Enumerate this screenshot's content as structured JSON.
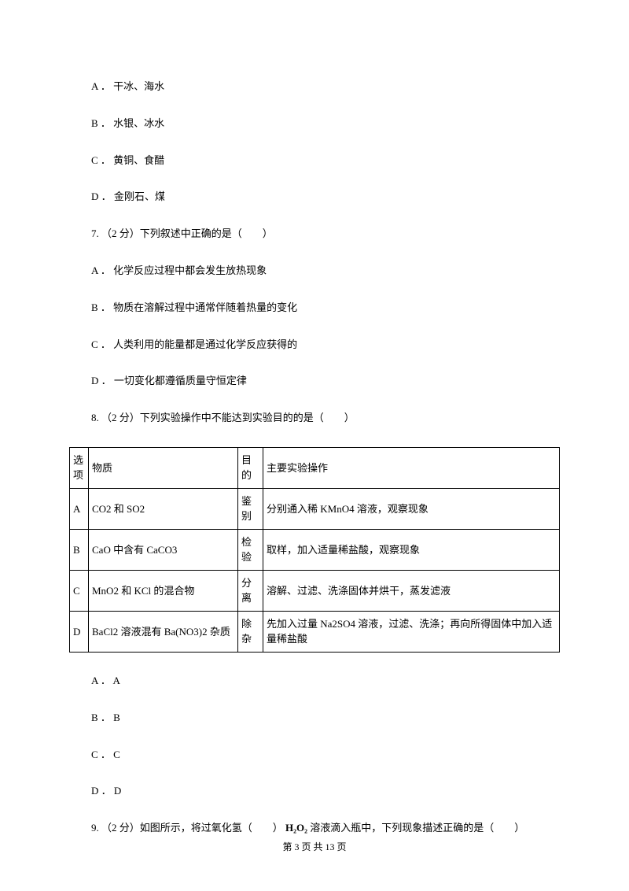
{
  "q6": {
    "a": "A ． 干冰、海水",
    "b": "B ． 水银、冰水",
    "c": "C ． 黄铜、食醋",
    "d": "D ． 金刚石、煤"
  },
  "q7": {
    "stem": "7. （2 分）下列叙述中正确的是（　　）",
    "a": "A ． 化学反应过程中都会发生放热现象",
    "b": "B ． 物质在溶解过程中通常伴随着热量的变化",
    "c": "C ． 人类利用的能量都是通过化学反应获得的",
    "d": "D ． 一切变化都遵循质量守恒定律"
  },
  "q8": {
    "stem": "8. （2 分）下列实验操作中不能达到实验目的的是（　　）",
    "headers": {
      "opt": "选项",
      "sub": "物质",
      "pur": "目的",
      "ops": "主要实验操作"
    },
    "rows": [
      {
        "opt": "A",
        "sub": "CO2 和 SO2",
        "pur": "鉴别",
        "ops": "分别通入稀 KMnO4 溶液，观察现象"
      },
      {
        "opt": "B",
        "sub": "CaO 中含有 CaCO3",
        "pur": "检验",
        "ops": "取样，加入适量稀盐酸，观察现象"
      },
      {
        "opt": "C",
        "sub": "MnO2 和 KCl 的混合物",
        "pur": "分离",
        "ops": "溶解、过滤、洗涤固体并烘干，蒸发滤液"
      },
      {
        "opt": "D",
        "sub": "BaCl2 溶液混有 Ba(NO3)2 杂质",
        "pur": "除杂",
        "ops": "先加入过量 Na2SO4 溶液，过滤、洗涤；再向所得固体中加入适量稀盐酸"
      }
    ],
    "a": "A ． A",
    "b": "B ． B",
    "c": "C ． C",
    "d": "D ． D"
  },
  "q9": {
    "pre": "9. （2 分）如图所示，将过氧化氢（　　）",
    "formula": "H₂O₂",
    "post": "溶液滴入瓶中，下列现象描述正确的是（　　）"
  },
  "footer": "第 3 页 共 13 页"
}
